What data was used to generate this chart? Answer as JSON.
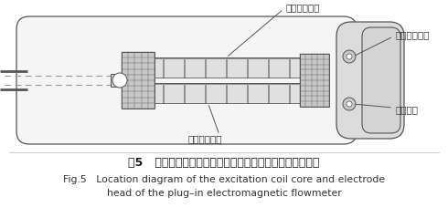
{
  "title_cn": "图5   插入式电磁流量计的励磁线圈磁芯与电极头部的位置图",
  "title_en1": "Fig.5   Location diagram of the excitation coil core and electrode",
  "title_en2": "head of the plug–in electromagnetic flowmeter",
  "label_core": "励磁线圈磁芯",
  "label_coil": "励磁线圈部件",
  "label_insulator": "非金属隔离体",
  "label_electrode": "端部电极",
  "bg_color": "#ffffff",
  "lc": "#555555",
  "lc_dark": "#333333",
  "body_fc": "#f5f5f5",
  "coil_fc": "#e8e8e8",
  "hatch_fc": "#c8c8c8",
  "endcap_fc": "#dcdcdc"
}
